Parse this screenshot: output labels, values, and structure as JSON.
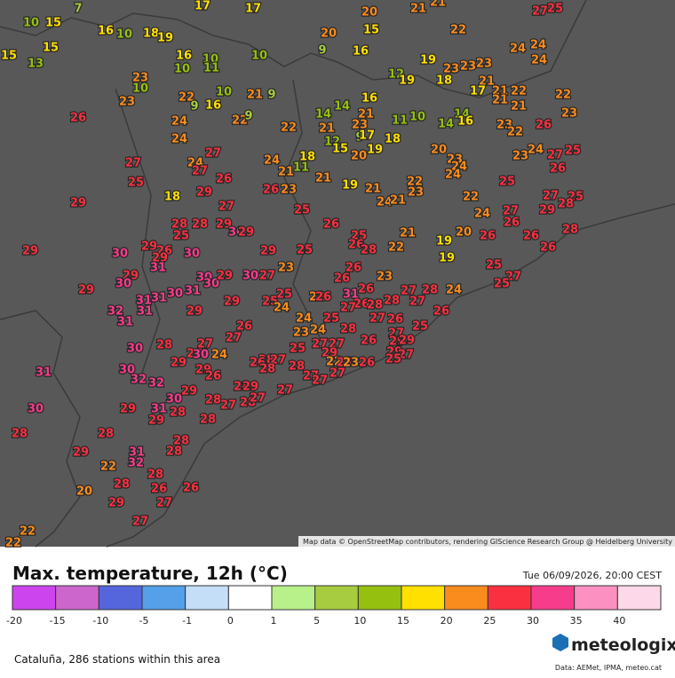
{
  "map": {
    "attribution": "Map data © OpenStreetMap contributors, rendering GIScience Research Group @ Heidelberg University",
    "stations": [
      10,
      15,
      7,
      17,
      17,
      20,
      21,
      21,
      27,
      25,
      16,
      10,
      18,
      19,
      20,
      15,
      22,
      15,
      15,
      13,
      16,
      10,
      10,
      9,
      16,
      19,
      24,
      24,
      24,
      23,
      10,
      10,
      11,
      12,
      19,
      18,
      23,
      23,
      23,
      21,
      17,
      21,
      22,
      22,
      23,
      22,
      9,
      16,
      10,
      21,
      9,
      16,
      21,
      21,
      26,
      24,
      22,
      9,
      22,
      14,
      14,
      21,
      23,
      11,
      10,
      14,
      14,
      16,
      23,
      22,
      26,
      23,
      24,
      27,
      24,
      18,
      21,
      11,
      21,
      12,
      15,
      9,
      17,
      20,
      19,
      18,
      20,
      23,
      24,
      24,
      23,
      24,
      27,
      25,
      26,
      27,
      24,
      27,
      26,
      25,
      21,
      19,
      21,
      22,
      23,
      29,
      26,
      23,
      22,
      25,
      27,
      25,
      28,
      29,
      18,
      27,
      25,
      24,
      21,
      24,
      27,
      26,
      29,
      28,
      28,
      29,
      30,
      29,
      25,
      26,
      25,
      26,
      28,
      22,
      21,
      19,
      20,
      26,
      26,
      28,
      29,
      30,
      29,
      26,
      29,
      30,
      29,
      25,
      19,
      26,
      31,
      29,
      30,
      30,
      30,
      29,
      30,
      27,
      23,
      26,
      26,
      23,
      25,
      27,
      25,
      29,
      31,
      30,
      31,
      25,
      22,
      26,
      31,
      26,
      27,
      28,
      24,
      25,
      24,
      29,
      26,
      27,
      28,
      28,
      27,
      26,
      32,
      31,
      31,
      29,
      31,
      24,
      25,
      27,
      26,
      26,
      25,
      27,
      23,
      24,
      28,
      27,
      30,
      28,
      27,
      24,
      26,
      25,
      27,
      27,
      29,
      26,
      29,
      29,
      29,
      27,
      25,
      29,
      30,
      28,
      27,
      26,
      28,
      28,
      22,
      28,
      23,
      26,
      30,
      29,
      26,
      27,
      27,
      27,
      32,
      32,
      29,
      28,
      29,
      27,
      31,
      30,
      28,
      27,
      28,
      27,
      30,
      29,
      31,
      28,
      29,
      28,
      28,
      28,
      28,
      29,
      31,
      28,
      32,
      22,
      28,
      28,
      26,
      26,
      20,
      29,
      27,
      27,
      22,
      22
    ]
  },
  "header": {
    "title": "Max. temperature, 12h (°C)",
    "date": "Tue 06/09/2026, 20:00 CEST"
  },
  "legend": {
    "bins": [
      -20,
      -15,
      -10,
      -5,
      -1,
      0,
      1,
      5,
      10,
      15,
      20,
      25,
      30,
      35,
      40
    ],
    "colors": [
      "#cc44ee",
      "#cc66cc",
      "#5566dd",
      "#55a0e8",
      "#c4def8",
      "#ffffff",
      "#b8f08a",
      "#a8cc40",
      "#96c010",
      "#ffe000",
      "#fa8c1e",
      "#fa3040",
      "#f83c8c",
      "#fc90c0",
      "#fcd8e8"
    ]
  },
  "footer": {
    "region": "Cataluña, 286 stations within this area",
    "brand": "meteologix",
    "sources": "Data: AEMet, IPMA, meteo.cat"
  }
}
